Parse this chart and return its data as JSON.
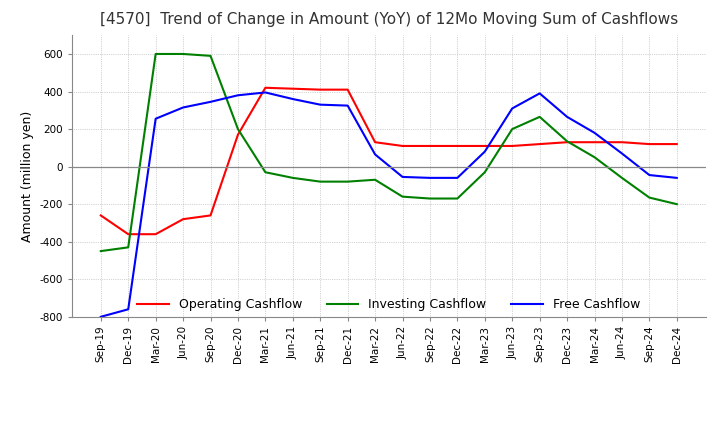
{
  "title": "[4570]  Trend of Change in Amount (YoY) of 12Mo Moving Sum of Cashflows",
  "ylabel": "Amount (million yen)",
  "ylim": [
    -800,
    700
  ],
  "yticks": [
    -800,
    -600,
    -400,
    -200,
    0,
    200,
    400,
    600
  ],
  "x_labels": [
    "Sep-19",
    "Dec-19",
    "Mar-20",
    "Jun-20",
    "Sep-20",
    "Dec-20",
    "Mar-21",
    "Jun-21",
    "Sep-21",
    "Dec-21",
    "Mar-22",
    "Jun-22",
    "Sep-22",
    "Dec-22",
    "Mar-23",
    "Jun-23",
    "Sep-23",
    "Dec-23",
    "Mar-24",
    "Jun-24",
    "Sep-24",
    "Dec-24"
  ],
  "operating": [
    -260,
    -360,
    -360,
    -280,
    -260,
    170,
    420,
    415,
    410,
    410,
    130,
    110,
    110,
    110,
    110,
    110,
    120,
    130,
    130,
    130,
    120,
    120
  ],
  "investing": [
    -450,
    -430,
    600,
    600,
    590,
    200,
    -30,
    -60,
    -80,
    -80,
    -70,
    -160,
    -170,
    -170,
    -30,
    200,
    265,
    135,
    50,
    -60,
    -165,
    -200
  ],
  "free": [
    -800,
    -760,
    255,
    315,
    345,
    380,
    395,
    360,
    330,
    325,
    65,
    -55,
    -60,
    -60,
    80,
    310,
    390,
    265,
    180,
    70,
    -45,
    -60
  ],
  "operating_color": "#ff0000",
  "investing_color": "#008000",
  "free_color": "#0000ff",
  "background_color": "#ffffff",
  "grid_color": "#aaaaaa",
  "title_fontsize": 11,
  "legend_labels": [
    "Operating Cashflow",
    "Investing Cashflow",
    "Free Cashflow"
  ]
}
